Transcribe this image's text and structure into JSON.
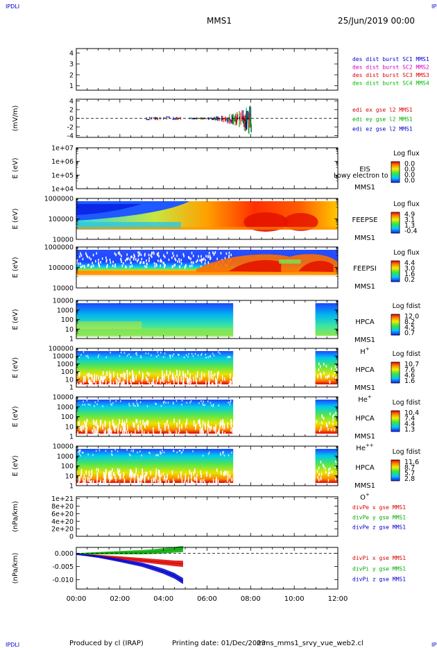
{
  "header": {
    "corner_tl": "IPDLI",
    "corner_tr": "IPDLI",
    "corner_bl": "IPDLI",
    "corner_br": "IPDLI",
    "spacecraft": "MMS1",
    "date": "25/Jun/2019 00:00"
  },
  "footer": {
    "produced": "Produced by cl (IRAP)",
    "printing": "Printing date: 01/Dec/2023",
    "file": "mms_mms1_srvy_vue_web2.cl"
  },
  "chart_data": {
    "type": "multi-panel-timeseries",
    "x_axis": {
      "ticks": [
        "00:00",
        "02:00",
        "04:00",
        "06:00",
        "08:00",
        "10:00",
        "12:00"
      ],
      "range_hours": [
        0,
        12
      ]
    },
    "panels": [
      {
        "id": "burst",
        "type": "line",
        "ylabel": "",
        "yticks": [
          "4",
          "3",
          "2",
          "1"
        ],
        "ylim": [
          0.6,
          4.4
        ],
        "legend": [
          {
            "text": "des dist burst SC1 MMS1",
            "color": "#0000cc"
          },
          {
            "text": "des dist burst SC2 MMS2",
            "color": "#cc00cc"
          },
          {
            "text": "des dist burst SC3 MMS3",
            "color": "#dd0000"
          },
          {
            "text": "des dist burst SC4 MMS4",
            "color": "#00bb00"
          }
        ]
      },
      {
        "id": "edi",
        "type": "line",
        "ylabel": "(mV/m)",
        "yticks": [
          "4",
          "2",
          "0",
          "-2",
          "-4"
        ],
        "ylim": [
          -4.4,
          4.4
        ],
        "dashed_zero": true,
        "legend": [
          {
            "text": "edi ex gse l2 MMS1",
            "color": "#dd0000"
          },
          {
            "text": "edi ey gse l2 MMS1",
            "color": "#00aa00"
          },
          {
            "text": "edi ez gse l2 MMS1",
            "color": "#0000cc"
          }
        ]
      },
      {
        "id": "eis",
        "type": "heatmap",
        "ylabel": "E (eV)",
        "yticks": [
          "1e+07",
          "1e+06",
          "1e+05",
          "1e+04"
        ],
        "log": true,
        "instrument": [
          "EIS",
          "MMS1"
        ],
        "extra": "Lowy electron to",
        "colorbar_title": "Log flux",
        "colorbar_labels": [
          "0.0",
          "0.0",
          "0.0",
          "0.0"
        ]
      },
      {
        "id": "feepse",
        "type": "heatmap",
        "ylabel": "E (eV)",
        "yticks": [
          "1000000",
          "100000",
          "10000"
        ],
        "log": true,
        "instrument": [
          "FEEPSE",
          "MMS1"
        ],
        "colorbar_title": "Log flux",
        "colorbar_labels": [
          "4.9",
          "3.1",
          "1.3",
          "-0.4"
        ]
      },
      {
        "id": "feepsi",
        "type": "heatmap",
        "ylabel": "E (eV)",
        "yticks": [
          "1000000",
          "100000",
          "10000"
        ],
        "log": true,
        "instrument": [
          "FEEPSI",
          "MMS1"
        ],
        "colorbar_title": "Log flux",
        "colorbar_labels": [
          "4.4",
          "3.0",
          "1.6",
          "0.2"
        ]
      },
      {
        "id": "hpca_h",
        "type": "heatmap",
        "ylabel": "E (eV)",
        "yticks": [
          "10000",
          "1000",
          "100",
          "10",
          "1"
        ],
        "log": true,
        "instrument": [
          "HPCA",
          "MMS1"
        ],
        "species": "H",
        "species_sup": "+",
        "colorbar_title": "Log fdist",
        "colorbar_labels": [
          "12.0",
          "8.2",
          "4.5",
          "0.7"
        ],
        "data_gap_hours": [
          7.2,
          11.0
        ]
      },
      {
        "id": "hpca_he",
        "type": "heatmap",
        "ylabel": "E (eV)",
        "yticks": [
          "100000",
          "10000",
          "1000",
          "100",
          "10",
          "1"
        ],
        "log": true,
        "instrument": [
          "HPCA",
          "MMS1"
        ],
        "species": "He",
        "species_sup": "+",
        "colorbar_title": "Log fdist",
        "colorbar_labels": [
          "10.7",
          "7.6",
          "4.6",
          "1.6"
        ],
        "data_gap_hours": [
          7.2,
          11.0
        ]
      },
      {
        "id": "hpca_he2",
        "type": "heatmap",
        "ylabel": "E (eV)",
        "yticks": [
          "10000",
          "1000",
          "100",
          "10",
          "1"
        ],
        "log": true,
        "instrument": [
          "HPCA",
          "MMS1"
        ],
        "species": "He",
        "species_sup": "++",
        "colorbar_title": "Log fdist",
        "colorbar_labels": [
          "10.4",
          "7.4",
          "4.4",
          "1.3"
        ],
        "data_gap_hours": [
          7.2,
          11.0
        ]
      },
      {
        "id": "hpca_o",
        "type": "heatmap",
        "ylabel": "E (eV)",
        "yticks": [
          "10000",
          "1000",
          "100",
          "10",
          "1"
        ],
        "log": true,
        "instrument": [
          "HPCA",
          "MMS1"
        ],
        "species": "O",
        "species_sup": "+",
        "colorbar_title": "Log fdist",
        "colorbar_labels": [
          "11.6",
          "8.7",
          "5.7",
          "2.8"
        ],
        "data_gap_hours": [
          7.2,
          11.0
        ]
      },
      {
        "id": "divpe",
        "type": "line",
        "ylabel": "(nPa/km)",
        "yticks": [
          "1e+21",
          "8e+20",
          "6e+20",
          "4e+20",
          "2e+20",
          "0"
        ],
        "ylim": [
          0,
          1.05e+21
        ],
        "dashed_zero": true,
        "legend": [
          {
            "text": "divPe x gse MMS1",
            "color": "#dd0000"
          },
          {
            "text": "divPe y gse MMS1",
            "color": "#00aa00"
          },
          {
            "text": "divPe z gse MMS1",
            "color": "#0000cc"
          }
        ]
      },
      {
        "id": "divpi",
        "type": "line",
        "ylabel": "(nPa/km)",
        "yticks": [
          "0.000",
          "-0.005",
          "-0.010"
        ],
        "ylim": [
          -0.0135,
          0.0022
        ],
        "dashed_zero": true,
        "legend": [
          {
            "text": "divPi x gse MMS1",
            "color": "#dd0000"
          },
          {
            "text": "divPi y gse MMS1",
            "color": "#00aa00"
          },
          {
            "text": "divPi z gse MMS1",
            "color": "#0000cc"
          }
        ],
        "series": [
          {
            "name": "divPi x gse MMS1",
            "color": "#dd0000",
            "x": [
              0,
              0.5,
              1,
              1.5,
              2,
              2.5,
              3,
              3.5,
              4,
              4.5,
              4.9
            ],
            "y": [
              -0.0002,
              -0.0006,
              -0.001,
              -0.0014,
              -0.0018,
              -0.0022,
              -0.0026,
              -0.003,
              -0.0034,
              -0.0038,
              -0.004
            ]
          },
          {
            "name": "divPi y gse MMS1",
            "color": "#00aa00",
            "x": [
              0,
              0.5,
              1,
              1.5,
              2,
              2.5,
              3,
              3.5,
              4,
              4.5,
              4.9
            ],
            "y": [
              -0.0003,
              -0.0001,
              0.0,
              0.0001,
              0.0002,
              0.0003,
              0.0004,
              0.0006,
              0.0009,
              0.0013,
              0.0016
            ]
          },
          {
            "name": "divPi z gse MMS1",
            "color": "#0000cc",
            "x": [
              0,
              0.5,
              1,
              1.5,
              2,
              2.5,
              3,
              3.5,
              4,
              4.5,
              4.9
            ],
            "y": [
              -0.0004,
              -0.0008,
              -0.0013,
              -0.002,
              -0.0027,
              -0.0035,
              -0.0043,
              -0.0055,
              -0.0068,
              -0.0085,
              -0.0105
            ]
          }
        ]
      }
    ]
  }
}
